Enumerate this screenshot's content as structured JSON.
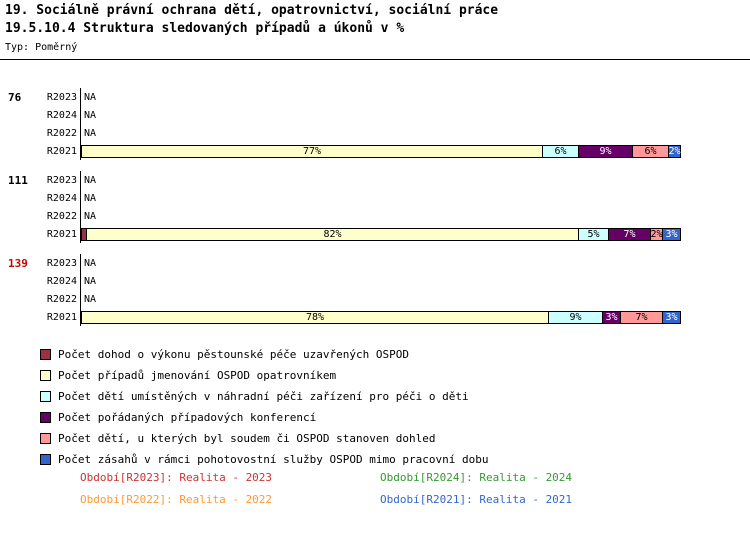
{
  "header": {
    "title_line1": "19. Sociálně právní ochrana dětí, opatrovnictví, sociální práce",
    "title_line2": "19.5.10.4 Struktura sledovaných případů a úkonů v %",
    "type_label": "Typ: Poměrný"
  },
  "chart_data": {
    "type": "bar",
    "orientation": "horizontal-stacked",
    "title": "19.5.10.4 Struktura sledovaných případů a úkonů v %",
    "xlim": [
      0,
      100
    ],
    "unit": "%",
    "na_text": "NA",
    "series": [
      {
        "name": "Počet dohod o výkonu pěstounské péče uzavřených OSPOD",
        "color": "#993344",
        "text": "#FFFFFF"
      },
      {
        "name": "Počet případů jmenování OSPOD opatrovníkem",
        "color": "#FFFFCC",
        "text": "#000000"
      },
      {
        "name": "Počet dětí umístěných v náhradní péči zařízení pro péči o děti",
        "color": "#CCFFFF",
        "text": "#000000"
      },
      {
        "name": "Počet pořádaných případových konferencí",
        "color": "#660066",
        "text": "#FFFFFF"
      },
      {
        "name": "Počet dětí, u kterých byl soudem či OSPOD stanoven dohled",
        "color": "#FF9999",
        "text": "#000000"
      },
      {
        "name": "Počet zásahů v rámci pohotovostní služby OSPOD mimo pracovní dobu",
        "color": "#3366CC",
        "text": "#FFFFFF"
      }
    ],
    "groups": [
      {
        "id": "76",
        "id_color": "#000000",
        "rows": [
          {
            "label": "R2023",
            "value": "NA"
          },
          {
            "label": "R2024",
            "value": "NA"
          },
          {
            "label": "R2022",
            "value": "NA"
          },
          {
            "label": "R2021",
            "bar": [
              {
                "series": 1,
                "pct": 77
              },
              {
                "series": 2,
                "pct": 6
              },
              {
                "series": 3,
                "pct": 9
              },
              {
                "series": 4,
                "pct": 6
              },
              {
                "series": 5,
                "pct": 2
              }
            ]
          }
        ]
      },
      {
        "id": "111",
        "id_color": "#000000",
        "rows": [
          {
            "label": "R2023",
            "value": "NA"
          },
          {
            "label": "R2024",
            "value": "NA"
          },
          {
            "label": "R2022",
            "value": "NA"
          },
          {
            "label": "R2021",
            "bar": [
              {
                "series": 0,
                "pct": 1
              },
              {
                "series": 1,
                "pct": 82
              },
              {
                "series": 2,
                "pct": 5
              },
              {
                "series": 3,
                "pct": 7
              },
              {
                "series": 4,
                "pct": 2
              },
              {
                "series": 5,
                "pct": 3
              }
            ]
          }
        ]
      },
      {
        "id": "139",
        "id_color": "#CC0000",
        "rows": [
          {
            "label": "R2023",
            "value": "NA"
          },
          {
            "label": "R2024",
            "value": "NA"
          },
          {
            "label": "R2022",
            "value": "NA"
          },
          {
            "label": "R2021",
            "bar": [
              {
                "series": 1,
                "pct": 78
              },
              {
                "series": 2,
                "pct": 9
              },
              {
                "series": 3,
                "pct": 3
              },
              {
                "series": 4,
                "pct": 7
              },
              {
                "series": 5,
                "pct": 3
              }
            ]
          }
        ]
      }
    ]
  },
  "footer": {
    "items": [
      {
        "period": "R2023",
        "text": "Období[R2023]: Realita - 2023",
        "color": "#CC3333"
      },
      {
        "period": "R2024",
        "text": "Období[R2024]: Realita - 2024",
        "color": "#339933"
      },
      {
        "period": "R2022",
        "text": "Období[R2022]: Realita - 2022",
        "color": "#FF9933"
      },
      {
        "period": "R2021",
        "text": "Období[R2021]: Realita - 2021",
        "color": "#3366CC"
      }
    ]
  }
}
